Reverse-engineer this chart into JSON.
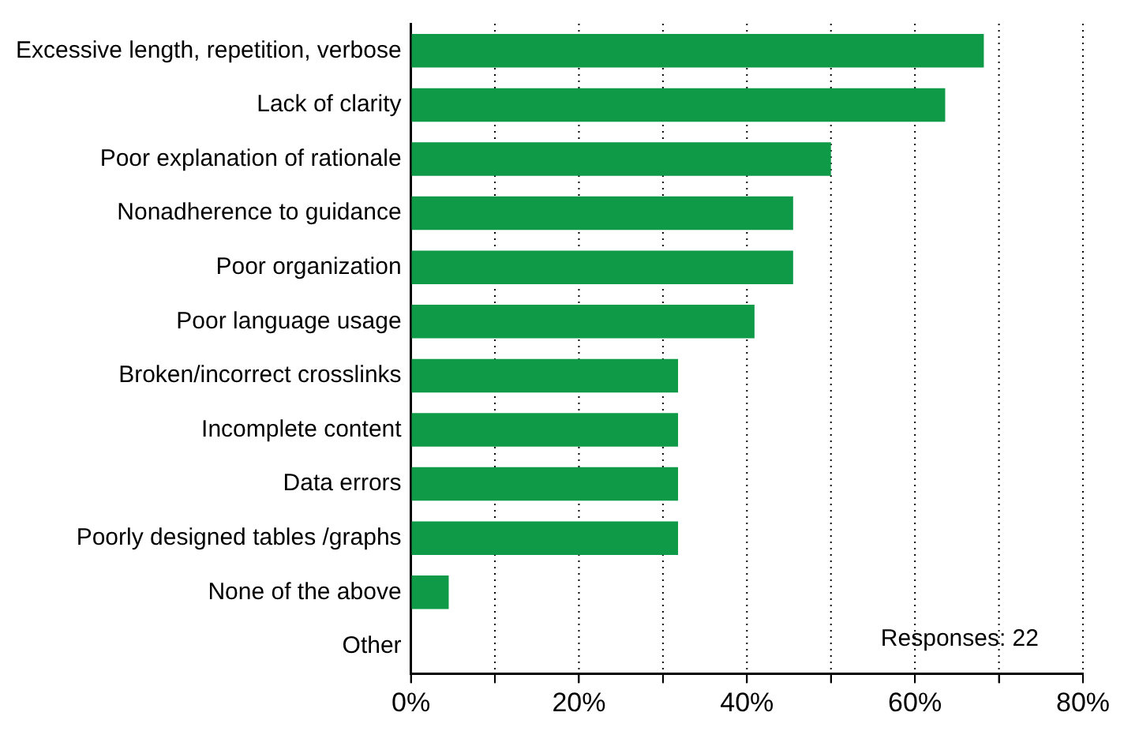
{
  "chart_data": {
    "type": "bar",
    "orientation": "horizontal",
    "categories": [
      "Excessive length, repetition, verbose",
      "Lack of clarity",
      "Poor explanation of rationale",
      "Nonadherence to guidance",
      "Poor organization",
      "Poor language usage",
      "Broken/incorrect crosslinks",
      "Incomplete content",
      "Data errors",
      "Poorly designed tables /graphs",
      "None of the above",
      "Other"
    ],
    "values": [
      68.2,
      63.6,
      50,
      45.5,
      45.5,
      40.9,
      31.8,
      31.8,
      31.8,
      31.8,
      4.5,
      0
    ],
    "color": "#0f9a48",
    "xlim": [
      0,
      80
    ],
    "xticks": [
      {
        "value": 0,
        "label": "0%"
      },
      {
        "value": 10,
        "label": null
      },
      {
        "value": 20,
        "label": "20%"
      },
      {
        "value": 30,
        "label": null
      },
      {
        "value": 40,
        "label": "40%"
      },
      {
        "value": 50,
        "label": null
      },
      {
        "value": 60,
        "label": "60%"
      },
      {
        "value": 70,
        "label": null
      },
      {
        "value": 80,
        "label": "80%"
      }
    ],
    "grid": "x",
    "legend": false,
    "annotations": [
      "Responses: 22"
    ]
  }
}
